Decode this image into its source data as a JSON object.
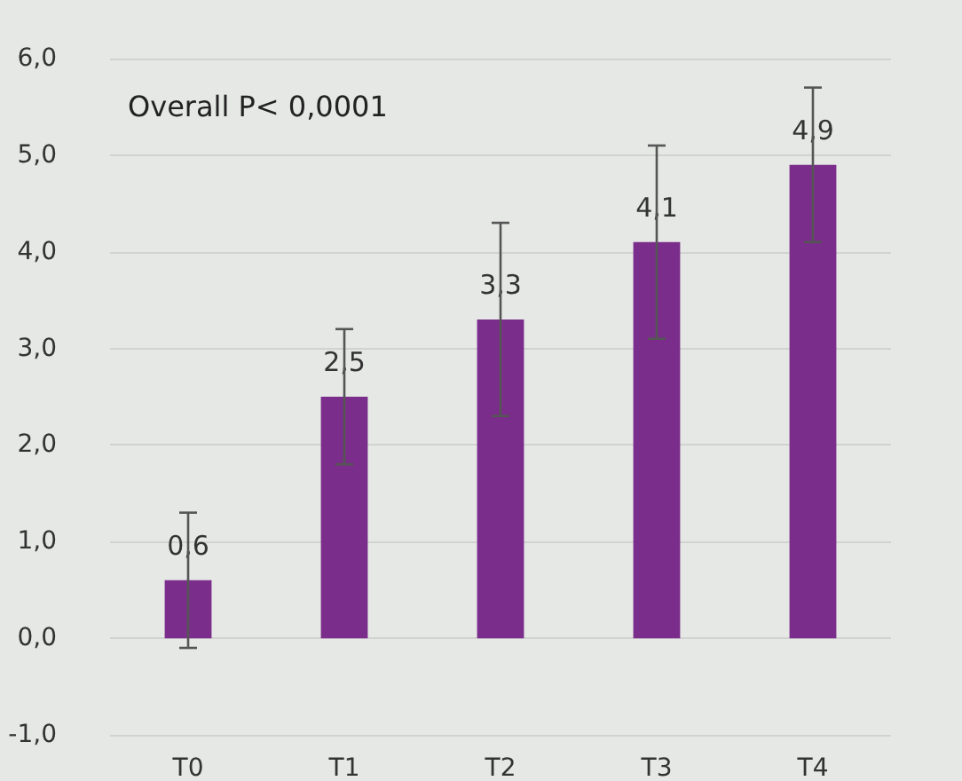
{
  "chart_data": {
    "type": "bar",
    "categories": [
      "T0",
      "T1",
      "T2",
      "T3",
      "T4"
    ],
    "values": [
      0.6,
      2.5,
      3.3,
      4.1,
      4.9
    ],
    "value_labels": [
      "0,6",
      "2,5",
      "3,3",
      "4,1",
      "4,9"
    ],
    "errors": [
      0.7,
      0.7,
      1.0,
      1.0,
      0.8
    ],
    "color": "#7b2d8b",
    "ylim": [
      -1,
      6
    ],
    "yticks": [
      {
        "value": -1,
        "label": "-1,0"
      },
      {
        "value": 0,
        "label": "0,0"
      },
      {
        "value": 1,
        "label": "1,0"
      },
      {
        "value": 2,
        "label": "2,0"
      },
      {
        "value": 3,
        "label": "3,0"
      },
      {
        "value": 4,
        "label": "4,0"
      },
      {
        "value": 5,
        "label": "5,0"
      },
      {
        "value": 6,
        "label": "6,0"
      }
    ],
    "grid": "y",
    "annotations": [
      "Overall P< 0,0001"
    ]
  }
}
